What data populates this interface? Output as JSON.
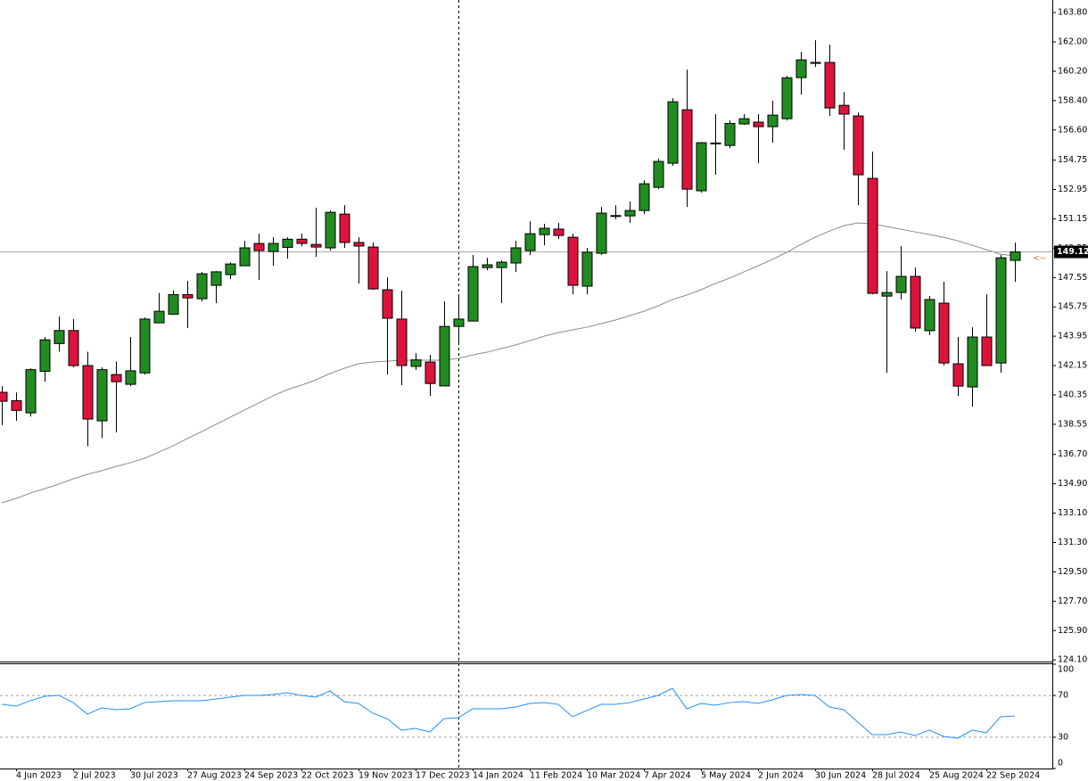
{
  "chart_data": [
    {
      "type": "candlestick",
      "categories": [
        null,
        "4 Jun 2023",
        null,
        null,
        null,
        "2 Jul 2023",
        null,
        null,
        null,
        "30 Jul 2023",
        null,
        null,
        null,
        "27 Aug 2023",
        null,
        null,
        null,
        "24 Sep 2023",
        null,
        null,
        null,
        "22 Oct 2023",
        null,
        null,
        null,
        "19 Nov 2023",
        null,
        null,
        null,
        "17 Dec 2023",
        null,
        null,
        null,
        "14 Jan 2024",
        null,
        null,
        null,
        "11 Feb 2024",
        null,
        null,
        null,
        "10 Mar 2024",
        null,
        null,
        null,
        "7 Apr 2024",
        null,
        null,
        null,
        "5 May 2024",
        null,
        null,
        null,
        "2 Jun 2024",
        null,
        null,
        null,
        "30 Jun 2024",
        null,
        null,
        null,
        "28 Jul 2024",
        null,
        null,
        null,
        "25 Aug 2024",
        null,
        null,
        null,
        "22 Sep 2024",
        null,
        null
      ],
      "open": [
        140.51,
        140.0,
        139.25,
        141.8,
        143.5,
        144.3,
        142.15,
        138.76,
        141.6,
        141.0,
        141.7,
        144.77,
        145.3,
        146.5,
        146.25,
        147.07,
        147.73,
        148.27,
        149.64,
        149.15,
        149.4,
        149.9,
        149.58,
        149.37,
        151.44,
        149.7,
        149.42,
        146.8,
        145.0,
        142.1,
        142.37,
        140.9,
        144.55,
        144.88,
        148.16,
        148.16,
        148.44,
        149.2,
        150.18,
        150.52,
        150.02,
        147.02,
        149.04,
        151.33,
        151.33,
        151.66,
        153.08,
        154.56,
        157.84,
        152.87,
        155.77,
        155.65,
        156.97,
        157.08,
        156.8,
        157.29,
        159.81,
        160.74,
        160.74,
        158.11,
        157.46,
        153.63,
        146.41,
        146.63,
        147.62,
        144.29,
        145.98,
        142.26,
        140.84,
        143.9,
        142.31,
        148.6
      ],
      "high": [
        140.89,
        140.5,
        141.98,
        143.9,
        145.16,
        145.0,
        143.0,
        142.04,
        142.4,
        143.9,
        145.1,
        146.6,
        146.74,
        147.34,
        147.89,
        147.94,
        148.49,
        149.8,
        150.24,
        150.02,
        150.02,
        150.24,
        151.83,
        151.66,
        151.99,
        150.02,
        149.7,
        147.56,
        146.74,
        142.91,
        142.8,
        146.09,
        146.52,
        148.93,
        148.76,
        148.6,
        149.8,
        151.0,
        150.84,
        150.9,
        150.24,
        149.37,
        151.88,
        151.99,
        152.21,
        153.52,
        154.83,
        158.55,
        160.3,
        155.86,
        157.57,
        157.18,
        157.57,
        157.57,
        158.39,
        159.92,
        161.39,
        162.1,
        161.83,
        158.93,
        157.68,
        155.27,
        147.94,
        149.47,
        148.16,
        146.41,
        147.29,
        143.9,
        144.5,
        146.52,
        148.93,
        149.69
      ],
      "low": [
        138.49,
        138.76,
        139.03,
        141.16,
        143.0,
        142.04,
        137.2,
        137.7,
        138.05,
        140.89,
        141.6,
        144.77,
        145.32,
        144.45,
        146.09,
        145.98,
        147.45,
        148.27,
        147.4,
        148.27,
        148.71,
        149.47,
        148.82,
        149.2,
        149.37,
        147.18,
        146.8,
        141.6,
        140.95,
        141.88,
        140.29,
        140.9,
        143.46,
        144.88,
        148.0,
        145.98,
        147.89,
        148.93,
        149.53,
        149.91,
        146.52,
        146.52,
        148.93,
        151.12,
        150.9,
        151.44,
        152.97,
        154.4,
        151.88,
        152.76,
        153.85,
        155.49,
        156.91,
        154.56,
        155.82,
        157.18,
        158.77,
        160.46,
        157.46,
        155.38,
        151.99,
        146.52,
        141.71,
        146.2,
        144.23,
        144.01,
        142.15,
        140.29,
        139.63,
        142.15,
        141.71,
        147.29
      ],
      "close": [
        139.96,
        139.4,
        141.9,
        143.73,
        144.3,
        142.15,
        138.87,
        141.9,
        141.16,
        141.83,
        145.0,
        145.48,
        146.5,
        146.3,
        147.78,
        147.9,
        148.38,
        149.37,
        149.2,
        149.64,
        149.9,
        149.64,
        149.42,
        151.55,
        149.7,
        149.48,
        146.85,
        145.05,
        142.15,
        142.5,
        141.05,
        144.55,
        145.0,
        148.22,
        148.33,
        148.49,
        149.37,
        150.24,
        150.57,
        150.13,
        147.07,
        149.1,
        151.5,
        151.35,
        151.66,
        153.3,
        154.67,
        158.33,
        152.97,
        155.82,
        155.8,
        157.0,
        157.29,
        156.8,
        157.51,
        159.8,
        160.9,
        160.7,
        157.95,
        157.57,
        153.85,
        146.58,
        146.63,
        147.62,
        144.45,
        146.2,
        142.31,
        140.89,
        143.9,
        142.15,
        148.76,
        149.12
      ],
      "ma_values": [
        133.73,
        134.0,
        134.33,
        134.6,
        134.88,
        135.2,
        135.48,
        135.7,
        135.97,
        136.19,
        136.46,
        136.84,
        137.23,
        137.67,
        138.1,
        138.54,
        138.98,
        139.42,
        139.85,
        140.29,
        140.67,
        140.95,
        141.27,
        141.66,
        141.98,
        142.26,
        142.37,
        142.42,
        142.48,
        142.48,
        142.48,
        142.48,
        142.59,
        142.8,
        142.97,
        143.19,
        143.41,
        143.68,
        143.95,
        144.17,
        144.34,
        144.5,
        144.72,
        144.94,
        145.21,
        145.48,
        145.81,
        146.2,
        146.47,
        146.8,
        147.18,
        147.51,
        147.89,
        148.27,
        148.66,
        149.09,
        149.58,
        150.02,
        150.4,
        150.73,
        150.9,
        150.84,
        150.68,
        150.51,
        150.35,
        150.19,
        150.02,
        149.8,
        149.53,
        149.26,
        148.98,
        148.87
      ],
      "up_color": "#228b22",
      "down_color": "#dc143c",
      "ma_color": "#8c8c8c",
      "ylim": [
        124.0,
        164.57
      ],
      "yticks": [
        {
          "value": 163.8,
          "label": "163.800"
        },
        {
          "value": 162.0,
          "label": "162.000"
        },
        {
          "value": 160.2,
          "label": "160.200"
        },
        {
          "value": 158.4,
          "label": "158.400"
        },
        {
          "value": 156.6,
          "label": "156.600"
        },
        {
          "value": 154.75,
          "label": "154.750"
        },
        {
          "value": 152.95,
          "label": "152.950"
        },
        {
          "value": 151.15,
          "label": "151.150"
        },
        {
          "value": 149.35,
          "label": "149.350"
        },
        {
          "value": 147.55,
          "label": "147.550"
        },
        {
          "value": 145.75,
          "label": "145.750"
        },
        {
          "value": 143.95,
          "label": "143.950"
        },
        {
          "value": 142.15,
          "label": "142.150"
        },
        {
          "value": 140.35,
          "label": "140.350"
        },
        {
          "value": 138.55,
          "label": "138.550"
        },
        {
          "value": 136.7,
          "label": "136.700"
        },
        {
          "value": 134.9,
          "label": "134.900"
        },
        {
          "value": 133.1,
          "label": "133.100"
        },
        {
          "value": 131.3,
          "label": "131.300"
        },
        {
          "value": 129.5,
          "label": "129.500"
        },
        {
          "value": 127.7,
          "label": "127.700"
        },
        {
          "value": 125.9,
          "label": "125.900"
        },
        {
          "value": 124.1,
          "label": "124.100"
        }
      ],
      "last_price": 149.122
    },
    {
      "type": "line",
      "values": [
        61.5,
        59.8,
        65.0,
        69.2,
        70.1,
        63.2,
        52.1,
        58.1,
        56.4,
        57.3,
        63.2,
        64.1,
        65.0,
        65.0,
        65.0,
        66.7,
        68.4,
        70.1,
        70.1,
        70.9,
        72.6,
        70.1,
        68.4,
        74.4,
        64.1,
        62.4,
        53.0,
        47.9,
        36.8,
        38.5,
        35.0,
        47.9,
        48.7,
        57.3,
        57.3,
        57.3,
        59.0,
        62.4,
        63.2,
        61.5,
        49.6,
        55.6,
        61.5,
        61.5,
        63.2,
        66.7,
        70.1,
        76.9,
        57.3,
        62.4,
        60.7,
        63.2,
        64.1,
        62.4,
        65.8,
        70.1,
        70.9,
        70.1,
        59.0,
        56.4,
        44.4,
        32.5,
        32.5,
        35.0,
        31.6,
        36.8,
        30.8,
        29.1,
        36.8,
        34.2,
        49.6,
        50.4
      ],
      "color": "#1e90ff",
      "ylim": [
        0,
        100
      ],
      "yticks": [
        0,
        30,
        70,
        100
      ],
      "levels": [
        30,
        70
      ]
    }
  ]
}
